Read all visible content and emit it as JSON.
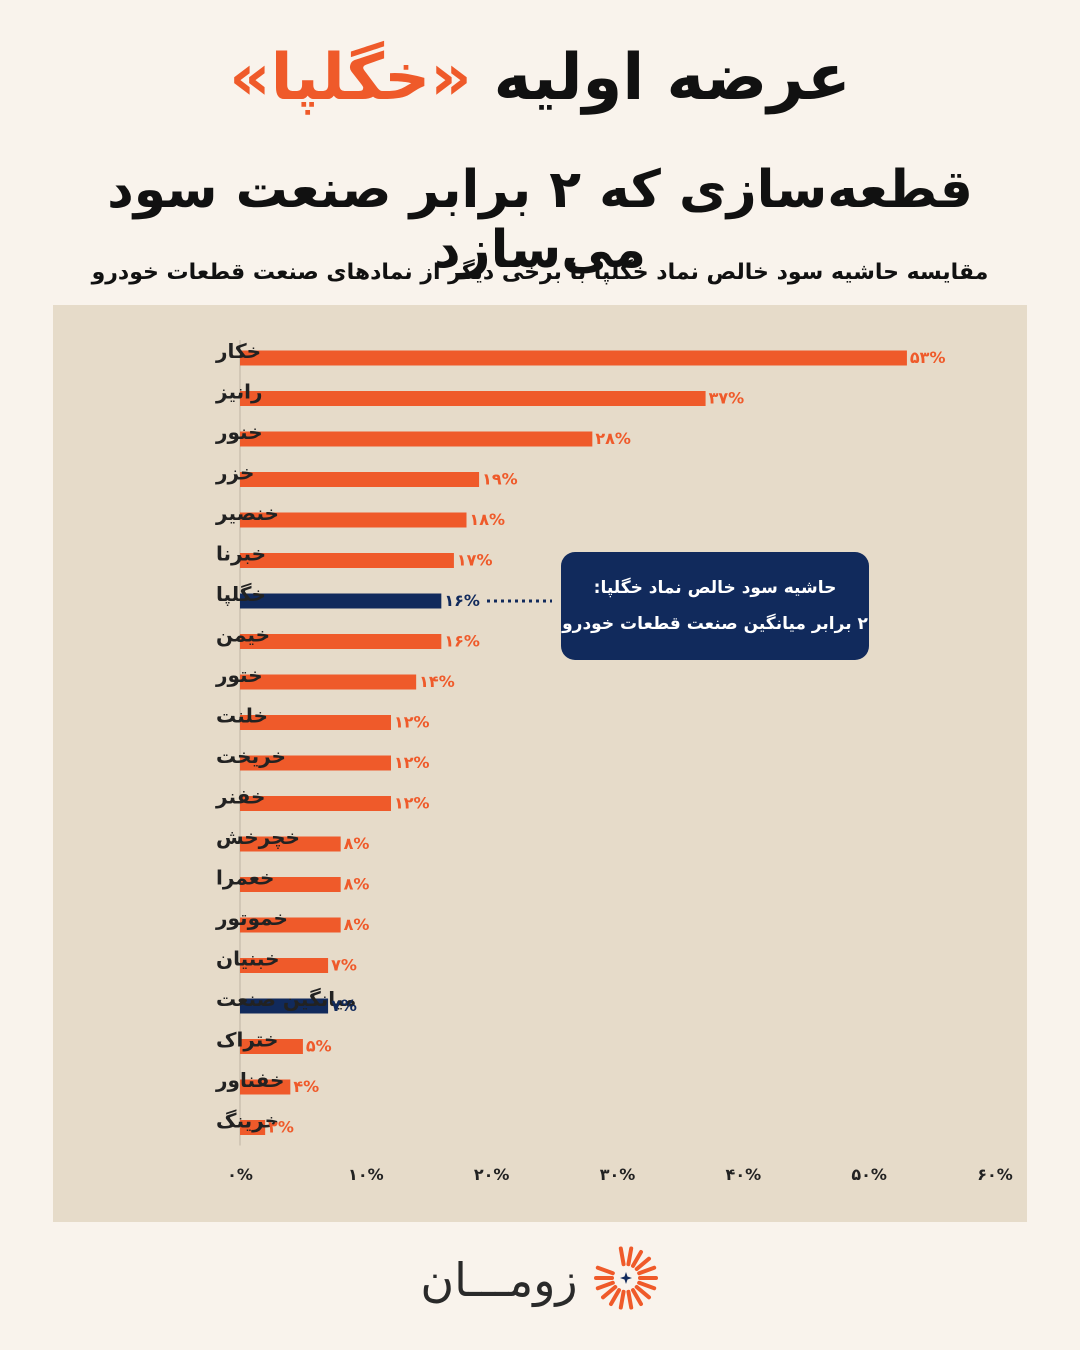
{
  "header": {
    "title_main": "عرضه اولیه",
    "title_accent": "«خگلپا»",
    "subtitle": "قطعه‌سازی که ۲ برابر صنعت سود می‌سازد",
    "caption": "مقایسه حاشیه سود خالص نماد خگلپا با برخی دیگر از نمادهای صنعت قطعات خودرو"
  },
  "callout": {
    "line1": "حاشیه سود خالص نماد خگلپا:",
    "line2": "۲ برابر میانگین صنعت قطعات خودرو"
  },
  "brand": {
    "name": "زومـــان",
    "logo_icon": "sunburst-logo-icon"
  },
  "colors": {
    "bar": "#ef5a2a",
    "highlight": "#112a5c",
    "background": "#f9f3ec",
    "panel": "#e6dbc9"
  },
  "chart_data": {
    "type": "bar",
    "orientation": "horizontal",
    "categories": [
      "خکار",
      "رانیز",
      "خنور",
      "خزر",
      "خنصیر",
      "خبرنا",
      "خگلپا",
      "خیمن",
      "ختور",
      "خلنت",
      "خریخت",
      "خفنر",
      "خچرخش",
      "خعمرا",
      "خموتور",
      "خبنیان",
      "میانگین صنعت",
      "ختراک",
      "خفناور",
      "خرینگ"
    ],
    "values": [
      53,
      37,
      28,
      19,
      18,
      17,
      16,
      16,
      14,
      12,
      12,
      12,
      8,
      8,
      8,
      7,
      7,
      5,
      4,
      2
    ],
    "value_labels": [
      "۵۳%",
      "۳۷%",
      "۲۸%",
      "۱۹%",
      "۱۸%",
      "۱۷%",
      "۱۶%",
      "۱۶%",
      "۱۴%",
      "۱۲%",
      "۱۲%",
      "۱۲%",
      "۸%",
      "۸%",
      "۸%",
      "۷%",
      "۷%",
      "۵%",
      "۴%",
      "۲%"
    ],
    "highlighted": [
      "خگلپا",
      "میانگین صنعت"
    ],
    "xlim": [
      0,
      60
    ],
    "ticks": [
      0,
      10,
      20,
      30,
      40,
      50,
      60
    ],
    "tick_labels": [
      "۰%",
      "۱۰%",
      "۲۰%",
      "۳۰%",
      "۴۰%",
      "۵۰%",
      "۶۰%"
    ],
    "grid": false
  }
}
